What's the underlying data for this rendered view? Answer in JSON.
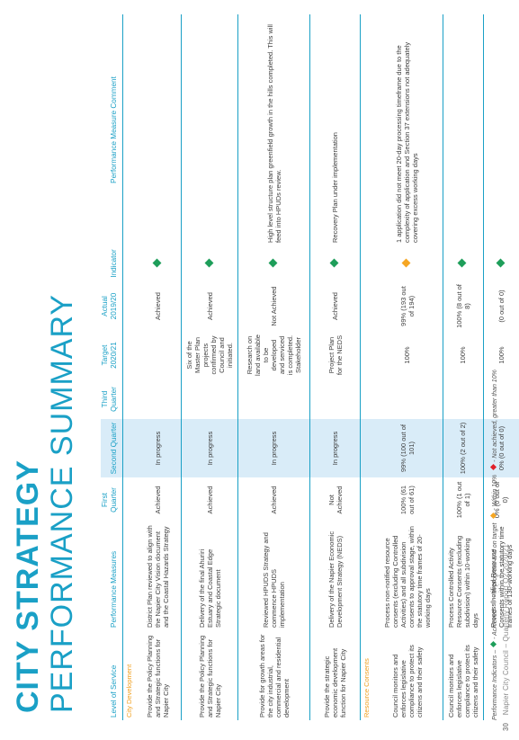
{
  "title": {
    "line1": "CITY STRATEGY",
    "line2": "PERFORMANCE SUMMARY"
  },
  "footer": {
    "page": "30",
    "text": "Napier City Council – Quarterly Report Q2 2020/21"
  },
  "colors": {
    "accent": "#1aa0c6",
    "green": "#1e9e5a",
    "orange": "#f5a623",
    "red": "#e0202a",
    "grey": "#b7b7b7",
    "shade": "#d9ecf8"
  },
  "headers": {
    "level": "Level of Service",
    "measures": "Performance Measures",
    "q1": "First Quarter",
    "q2": "Second Quarter",
    "q3": "Third Quarter",
    "target": "Target 2020/21",
    "actual": "Actual 2019/20",
    "indicator": "Indicator",
    "comment": "Performance Measure Comment"
  },
  "sections": [
    {
      "name": "City Development",
      "rows": [
        {
          "level": "Provide the Policy Planning and Strategic functions for Napier City",
          "measure": "District Plan reviewed to align with the Napier City Vision document and the Coastal Hazards Strategy",
          "q1": "Achieved",
          "q2": "In progress",
          "q3": "",
          "target": "",
          "actual": "Achieved",
          "indicator": "green",
          "comment": ""
        },
        {
          "level": "Provide the Policy Planning and Strategic functions for Napier City",
          "measure": "Delivery of the final Ahuriri Estuary and Coastal Edge Strategic document",
          "q1": "Achieved",
          "q2": "In progress",
          "q3": "",
          "target": "Six of the Master Plan projects confirmed by Council and initiated.",
          "actual": "Achieved",
          "indicator": "green",
          "comment": ""
        },
        {
          "level": "Provide for growth areas for the city industrial, commercial and residential development",
          "measure": "Reviewed HPUDS Strategy and commence HPUDS implementation",
          "q1": "Achieved",
          "q2": "In progress",
          "q3": "",
          "target": "Research on land available to be developed and serviced is completed. Stakeholder",
          "actual": "Not Achieved",
          "indicator": "green",
          "comment": "High level structure plan greenfield growth in the hills completed. This will feed into HPUDs review."
        },
        {
          "level": "Provide the strategic economic development function for Napier City",
          "measure": "Delivery of the Napier Economic Development Strategy (NEDS)",
          "q1": "Not Achieved",
          "q2": "In progress",
          "q3": "",
          "target": "Project Plan for the NEDS",
          "actual": "Achieved",
          "indicator": "green",
          "comment": "Recovery Plan under implementation"
        }
      ]
    },
    {
      "name": "Resource Consents",
      "rows": [
        {
          "level": "Council monitors and enforces legislative compliance to protect its citizens and their safety",
          "measure": "Process non-notified resource consents (excluding Controlled Activities) and all subdivision consents to approval stage, within the statutory time frames of 20-working days",
          "q1": "100% (61 out of 61)",
          "q2": "99% (100 out of 101)",
          "q3": "",
          "target": "100%",
          "actual": "99% (193 out of 194)",
          "indicator": "orange",
          "comment": "1 application did not meet 20-day processing timeframe due to the complexity of application and Section 37 extensions not adequately covering excess working days"
        },
        {
          "level": "Council monitors and enforces legislative compliance to protect its citizens and their safety",
          "measure": "Process Controlled Activity Resource Consents (excluding subdivision) within 10-working days",
          "q1": "100% (1 out of 1)",
          "q2": "100% (2 out of 2)",
          "q3": "",
          "target": "100%",
          "actual": "100% (8 out of 8)",
          "indicator": "green",
          "comment": ""
        },
        {
          "level": "",
          "measure": "Process notified Resource Consents within the statutory time frames of 130-working days",
          "q1": "0% (0 out of 0)",
          "q2": "0% (0 out of 0)",
          "q3": "",
          "target": "100%",
          "actual": "(0 out of 0)",
          "indicator": "green",
          "comment": ""
        },
        {
          "level": "",
          "measure": "Process limited notified Resource Consents within 100-working days",
          "q1": "0% (0 out of 0)",
          "q2": "0% (0 out of 0)",
          "q3": "",
          "target": "100%",
          "actual": "100% (1 out of 1)",
          "indicator": "green",
          "comment": ""
        }
      ]
    }
  ],
  "legend": {
    "prefix": "Performance Indicators –",
    "items": [
      {
        "color": "green",
        "label": "- Achieved"
      },
      {
        "color": "grey",
        "label": "- In progress and on target"
      },
      {
        "color": "orange",
        "label": "- Within 10%"
      },
      {
        "color": "red",
        "label": "- Not achieved, greater than 10%"
      }
    ]
  }
}
